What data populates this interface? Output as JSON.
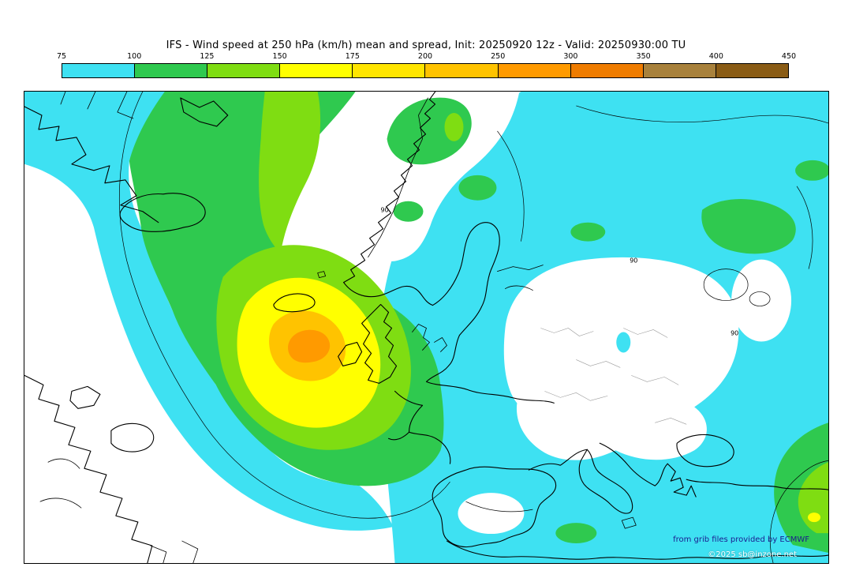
{
  "title": "IFS - Wind speed at 250 hPa (km/h) mean and spread, Init: 20250920 12z - Valid: 20250930:00 TU",
  "legend": {
    "unit": "km/h",
    "labels": [
      "75",
      "100",
      "125",
      "150",
      "175",
      "200",
      "250",
      "300",
      "350",
      "400",
      "450"
    ],
    "colors": [
      "#3ee1f2",
      "#2fc94f",
      "#7fdd12",
      "#ffff00",
      "#ffe500",
      "#ffc300",
      "#ff9a00",
      "#ef7c00",
      "#a8813c",
      "#8a5c15"
    ]
  },
  "palette": {
    "cyan": "#3ee1f2",
    "green": "#2fc94f",
    "chartreuse": "#7fdd12",
    "yellow": "#ffff00",
    "gold": "#ffc300",
    "orange": "#ff9a00",
    "coast": "#000000",
    "border_gray": "#9a9a9a",
    "credit_blue": "#1b1b8f"
  },
  "map": {
    "contour_labels": [
      {
        "text": "90"
      },
      {
        "text": "90"
      },
      {
        "text": "90"
      }
    ]
  },
  "footer": {
    "credit": "from grib files provided by ECMWF",
    "copyright": "©2025 sb@inzone.net"
  }
}
